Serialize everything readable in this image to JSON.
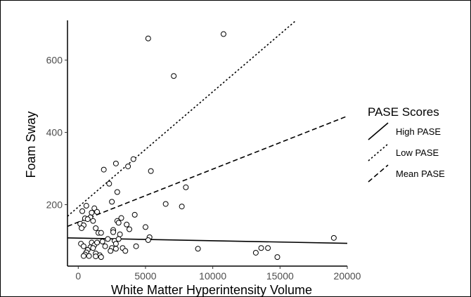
{
  "chart_data": {
    "type": "scatter",
    "title": "",
    "xlabel": "White Matter Hyperintensity Volume",
    "ylabel": "Foam Sway",
    "xlim": [
      -800,
      20000
    ],
    "ylim": [
      30,
      710
    ],
    "x_ticks": [
      {
        "value": 0,
        "label": "0"
      },
      {
        "value": 5000,
        "label": "5000"
      },
      {
        "value": 10000,
        "label": "10000"
      },
      {
        "value": 15000,
        "label": "15000"
      },
      {
        "value": 20000,
        "label": "20000"
      }
    ],
    "y_ticks": [
      {
        "value": 200,
        "label": "200"
      },
      {
        "value": 400,
        "label": "400"
      },
      {
        "value": 600,
        "label": "600"
      }
    ],
    "grid": false,
    "points": [
      {
        "x": 5200,
        "y": 660
      },
      {
        "x": 10800,
        "y": 672
      },
      {
        "x": 7100,
        "y": 556
      },
      {
        "x": 4100,
        "y": 326
      },
      {
        "x": 2800,
        "y": 314
      },
      {
        "x": 1900,
        "y": 297
      },
      {
        "x": 3700,
        "y": 306
      },
      {
        "x": 5400,
        "y": 293
      },
      {
        "x": 2300,
        "y": 258
      },
      {
        "x": 2900,
        "y": 235
      },
      {
        "x": 8000,
        "y": 248
      },
      {
        "x": 6500,
        "y": 202
      },
      {
        "x": 7700,
        "y": 195
      },
      {
        "x": 2500,
        "y": 208
      },
      {
        "x": 4200,
        "y": 172
      },
      {
        "x": 600,
        "y": 197
      },
      {
        "x": 300,
        "y": 182
      },
      {
        "x": 1200,
        "y": 190
      },
      {
        "x": 1000,
        "y": 178
      },
      {
        "x": 1400,
        "y": 180
      },
      {
        "x": 900,
        "y": 165
      },
      {
        "x": 500,
        "y": 162
      },
      {
        "x": 700,
        "y": 160
      },
      {
        "x": 1100,
        "y": 155
      },
      {
        "x": 150,
        "y": 147
      },
      {
        "x": 400,
        "y": 143
      },
      {
        "x": 250,
        "y": 135
      },
      {
        "x": 3200,
        "y": 163
      },
      {
        "x": 3600,
        "y": 145
      },
      {
        "x": 2900,
        "y": 155
      },
      {
        "x": 3000,
        "y": 150
      },
      {
        "x": 3800,
        "y": 132
      },
      {
        "x": 5000,
        "y": 138
      },
      {
        "x": 1300,
        "y": 135
      },
      {
        "x": 1500,
        "y": 122
      },
      {
        "x": 1700,
        "y": 122
      },
      {
        "x": 2600,
        "y": 130
      },
      {
        "x": 2600,
        "y": 124
      },
      {
        "x": 3100,
        "y": 118
      },
      {
        "x": 5300,
        "y": 110
      },
      {
        "x": 5200,
        "y": 102
      },
      {
        "x": 2200,
        "y": 105
      },
      {
        "x": 2700,
        "y": 100
      },
      {
        "x": 3000,
        "y": 105
      },
      {
        "x": 2800,
        "y": 92
      },
      {
        "x": 1800,
        "y": 98
      },
      {
        "x": 200,
        "y": 92
      },
      {
        "x": 400,
        "y": 85
      },
      {
        "x": 1000,
        "y": 95
      },
      {
        "x": 1200,
        "y": 88
      },
      {
        "x": 1400,
        "y": 95
      },
      {
        "x": 2000,
        "y": 85
      },
      {
        "x": 2500,
        "y": 80
      },
      {
        "x": 2800,
        "y": 78
      },
      {
        "x": 3300,
        "y": 80
      },
      {
        "x": 3500,
        "y": 72
      },
      {
        "x": 4300,
        "y": 85
      },
      {
        "x": 2400,
        "y": 72
      },
      {
        "x": 900,
        "y": 82
      },
      {
        "x": 1100,
        "y": 80
      },
      {
        "x": 700,
        "y": 75
      },
      {
        "x": 600,
        "y": 68
      },
      {
        "x": 500,
        "y": 62
      },
      {
        "x": 800,
        "y": 58
      },
      {
        "x": 1300,
        "y": 65
      },
      {
        "x": 1600,
        "y": 60
      },
      {
        "x": 1700,
        "y": 55
      },
      {
        "x": 1300,
        "y": 57
      },
      {
        "x": 400,
        "y": 58
      },
      {
        "x": 8900,
        "y": 78
      },
      {
        "x": 13200,
        "y": 67
      },
      {
        "x": 13600,
        "y": 80
      },
      {
        "x": 14100,
        "y": 80
      },
      {
        "x": 14800,
        "y": 55
      },
      {
        "x": 19000,
        "y": 108
      }
    ],
    "lines": [
      {
        "name": "High PASE",
        "style": "solid",
        "x": [
          -800,
          20000
        ],
        "y": [
          108,
          93
        ]
      },
      {
        "name": "Low PASE",
        "style": "dotted",
        "x": [
          -800,
          16200
        ],
        "y": [
          168,
          710
        ]
      },
      {
        "name": "Mean PASE",
        "style": "dashed",
        "x": [
          -800,
          20000
        ],
        "y": [
          140,
          445
        ]
      }
    ],
    "legend": {
      "title": "PASE Scores",
      "position": "right",
      "entries": [
        {
          "label": "High PASE",
          "style": "solid"
        },
        {
          "label": "Low PASE",
          "style": "dotted"
        },
        {
          "label": "Mean PASE",
          "style": "dashed"
        }
      ]
    }
  }
}
